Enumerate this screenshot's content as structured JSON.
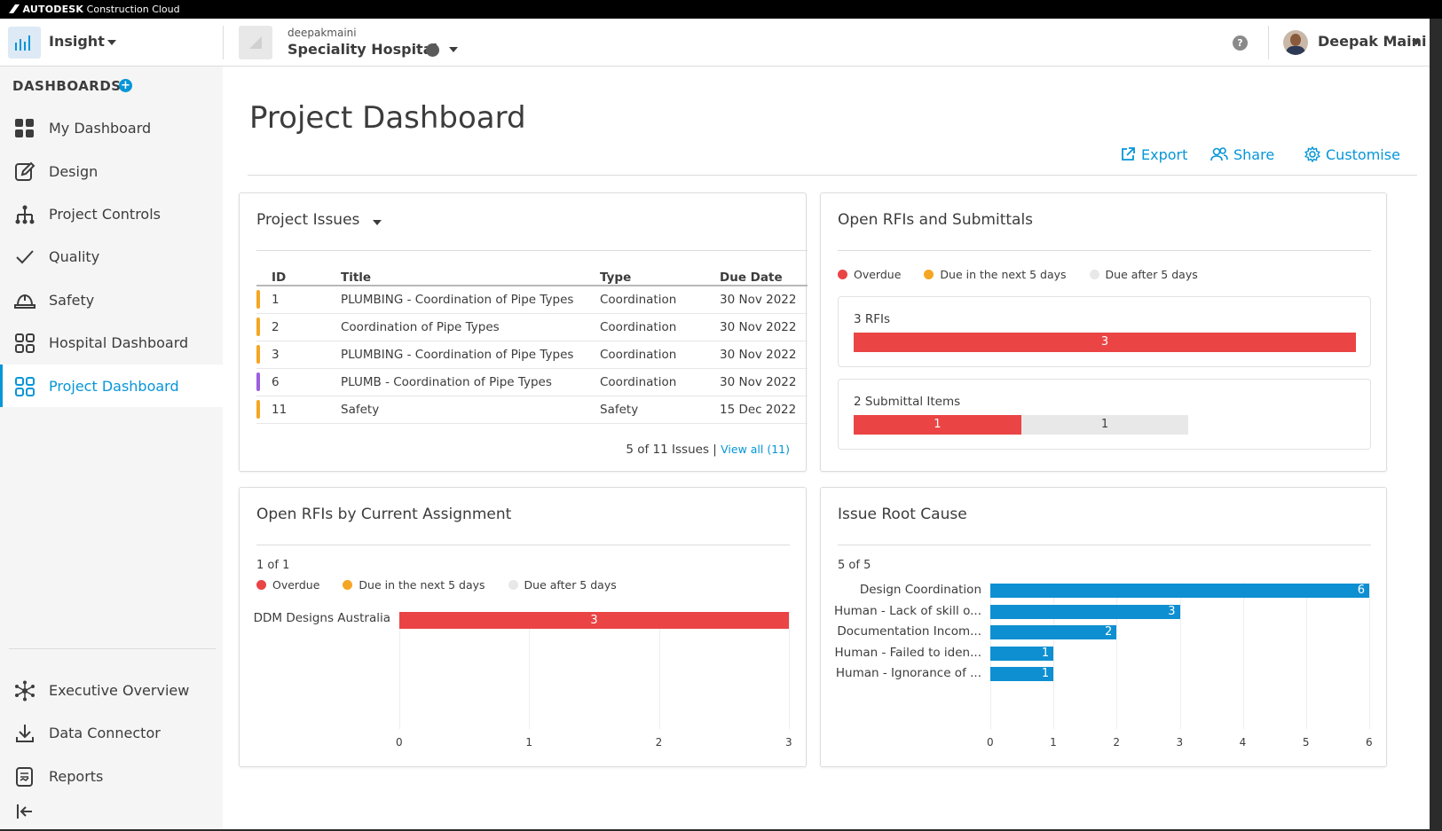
{
  "topbar": {
    "brand": "AUTODESK",
    "product": "Construction Cloud"
  },
  "header": {
    "app_name": "Insight",
    "account": "deepakmaini",
    "project": "Speciality Hospital",
    "user": "Deepak Maini",
    "help": "?"
  },
  "sidebar": {
    "heading": "DASHBOARDS",
    "add": "+",
    "items": [
      {
        "label": "My Dashboard",
        "icon": "grid-icon"
      },
      {
        "label": "Design",
        "icon": "edit-icon"
      },
      {
        "label": "Project Controls",
        "icon": "hierarchy-icon"
      },
      {
        "label": "Quality",
        "icon": "check-icon"
      },
      {
        "label": "Safety",
        "icon": "hardhat-icon"
      },
      {
        "label": "Hospital Dashboard",
        "icon": "dashboard-icon"
      },
      {
        "label": "Project Dashboard",
        "icon": "dashboard-icon",
        "active": true
      }
    ],
    "bottom_items": [
      {
        "label": "Executive Overview",
        "icon": "network-icon"
      },
      {
        "label": "Data Connector",
        "icon": "download-icon"
      },
      {
        "label": "Reports",
        "icon": "report-icon"
      }
    ]
  },
  "page": {
    "title": "Project Dashboard",
    "actions": {
      "export": "Export",
      "share": "Share",
      "customise": "Customise"
    }
  },
  "issues_card": {
    "title": "Project Issues",
    "columns": [
      "ID",
      "Title",
      "Type",
      "Due Date"
    ],
    "rows": [
      {
        "id": "1",
        "title": "PLUMBING - Coordination of Pipe Types",
        "type": "Coordination",
        "due": "30 Nov 2022",
        "color": "#f5a623"
      },
      {
        "id": "2",
        "title": "Coordination of Pipe Types",
        "type": "Coordination",
        "due": "30 Nov 2022",
        "color": "#f5a623"
      },
      {
        "id": "3",
        "title": "PLUMBING - Coordination of Pipe Types",
        "type": "Coordination",
        "due": "30 Nov 2022",
        "color": "#f5a623"
      },
      {
        "id": "6",
        "title": "PLUMB - Coordination of Pipe Types",
        "type": "Coordination",
        "due": "30 Nov 2022",
        "color": "#9c5fe0"
      },
      {
        "id": "11",
        "title": "Safety",
        "type": "Safety",
        "due": "15 Dec 2022",
        "color": "#f5a623"
      }
    ],
    "count_text": "5 of 11 Issues",
    "view_all": "View all (11)"
  },
  "legend": {
    "overdue": "Overdue",
    "due_next": "Due in the next 5 days",
    "due_after": "Due after 5 days"
  },
  "colors": {
    "overdue": "#ea4444",
    "due_next": "#f5a623",
    "due_after": "#e8e8e8",
    "accent": "#0696d7",
    "bar_blue": "#0e8fd1"
  },
  "rfis_submittals": {
    "title": "Open RFIs and Submittals",
    "rfis": {
      "label": "3 RFIs",
      "overdue": 3,
      "due_next": 0,
      "due_after": 0,
      "overdue_label": "3"
    },
    "submittals": {
      "label": "2 Submittal Items",
      "overdue": 1,
      "due_next": 0,
      "due_after": 1,
      "overdue_label": "1",
      "due_after_label": "1"
    }
  },
  "rfis_assignment": {
    "title": "Open RFIs by Current Assignment",
    "page_text": "1 of 1",
    "chart_data": {
      "type": "bar",
      "orientation": "horizontal",
      "categories": [
        "DDM Designs Australia"
      ],
      "values": [
        3
      ],
      "value_labels": [
        "3"
      ],
      "xlim": [
        0,
        3
      ],
      "xticks": [
        "0",
        "1",
        "2",
        "3"
      ]
    }
  },
  "root_cause": {
    "title": "Issue Root Cause",
    "page_text": "5 of 5",
    "chart_data": {
      "type": "bar",
      "orientation": "horizontal",
      "categories": [
        "Design Coordination",
        "Human - Lack of skill o...",
        "Documentation Incom...",
        "Human - Failed to iden...",
        "Human - Ignorance of ..."
      ],
      "values": [
        6,
        3,
        2,
        1,
        1
      ],
      "value_labels": [
        "6",
        "3",
        "2",
        "1",
        "1"
      ],
      "xlim": [
        0,
        6
      ],
      "xticks": [
        "0",
        "1",
        "2",
        "3",
        "4",
        "5",
        "6"
      ]
    }
  }
}
